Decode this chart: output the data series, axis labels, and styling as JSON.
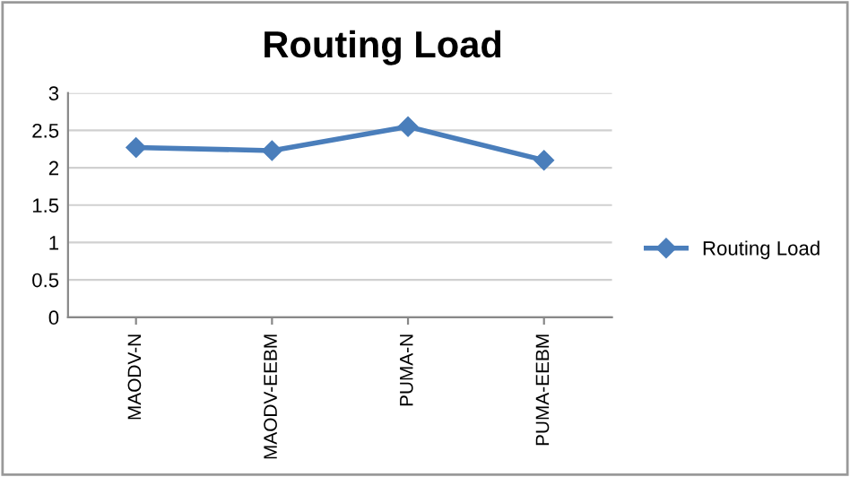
{
  "chart_data": {
    "type": "line",
    "title": "Routing Load",
    "categories": [
      "MAODV-N",
      "MAODV-EEBM",
      "PUMA-N",
      "PUMA-EEBM"
    ],
    "series": [
      {
        "name": "Routing Load",
        "color": "#4a7ebb",
        "values": [
          2.27,
          2.23,
          2.55,
          2.1
        ]
      }
    ],
    "ylim": [
      0,
      3
    ],
    "yticks": [
      0,
      0.5,
      1,
      1.5,
      2,
      2.5,
      3
    ],
    "grid": "y",
    "legend": "right",
    "marker": "diamond",
    "line_style": "solid"
  }
}
